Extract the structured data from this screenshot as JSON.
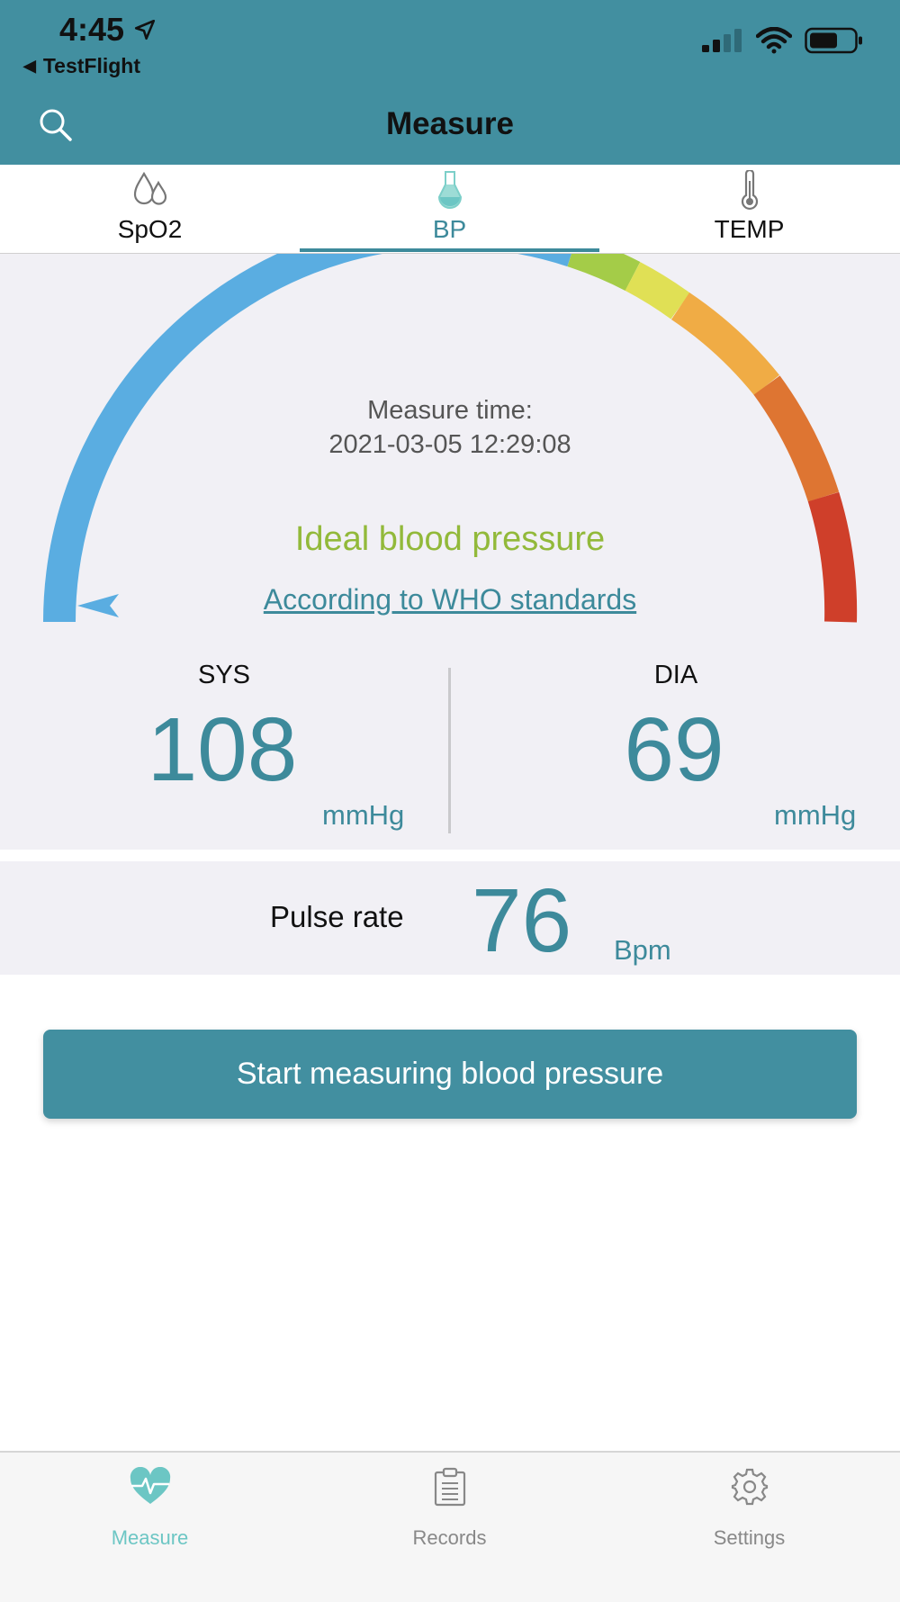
{
  "status_bar": {
    "time": "4:45",
    "back_app": "TestFlight"
  },
  "header": {
    "title": "Measure",
    "search_icon": "search-icon"
  },
  "tabs": [
    {
      "label": "SpO2",
      "icon": "droplets-icon",
      "active": false
    },
    {
      "label": "BP",
      "icon": "flask-icon",
      "active": true
    },
    {
      "label": "TEMP",
      "icon": "thermometer-icon",
      "active": false
    }
  ],
  "gauge": {
    "segments": [
      "#5aade1",
      "#a4cc48",
      "#e0e055",
      "#f0ac45",
      "#de7532",
      "#cf3f2a"
    ],
    "measure_label": "Measure time:",
    "measure_time": "2021-03-05 12:29:08",
    "status": "Ideal blood pressure",
    "status_color": "#92b93a",
    "standard_link": "According to WHO standards"
  },
  "readings": {
    "sys": {
      "label": "SYS",
      "value": "108",
      "unit": "mmHg"
    },
    "dia": {
      "label": "DIA",
      "value": "69",
      "unit": "mmHg"
    }
  },
  "pulse": {
    "label": "Pulse rate",
    "value": "76",
    "unit": "Bpm"
  },
  "start_button": "Start measuring blood pressure",
  "bottom_tabs": [
    {
      "label": "Measure",
      "icon": "heart-pulse-icon",
      "active": true
    },
    {
      "label": "Records",
      "icon": "clipboard-icon",
      "active": false
    },
    {
      "label": "Settings",
      "icon": "gear-icon",
      "active": false
    }
  ],
  "colors": {
    "accent": "#428fa0",
    "value_teal": "#3d8a9b",
    "active_bottom_tab": "#6cc6c4"
  }
}
